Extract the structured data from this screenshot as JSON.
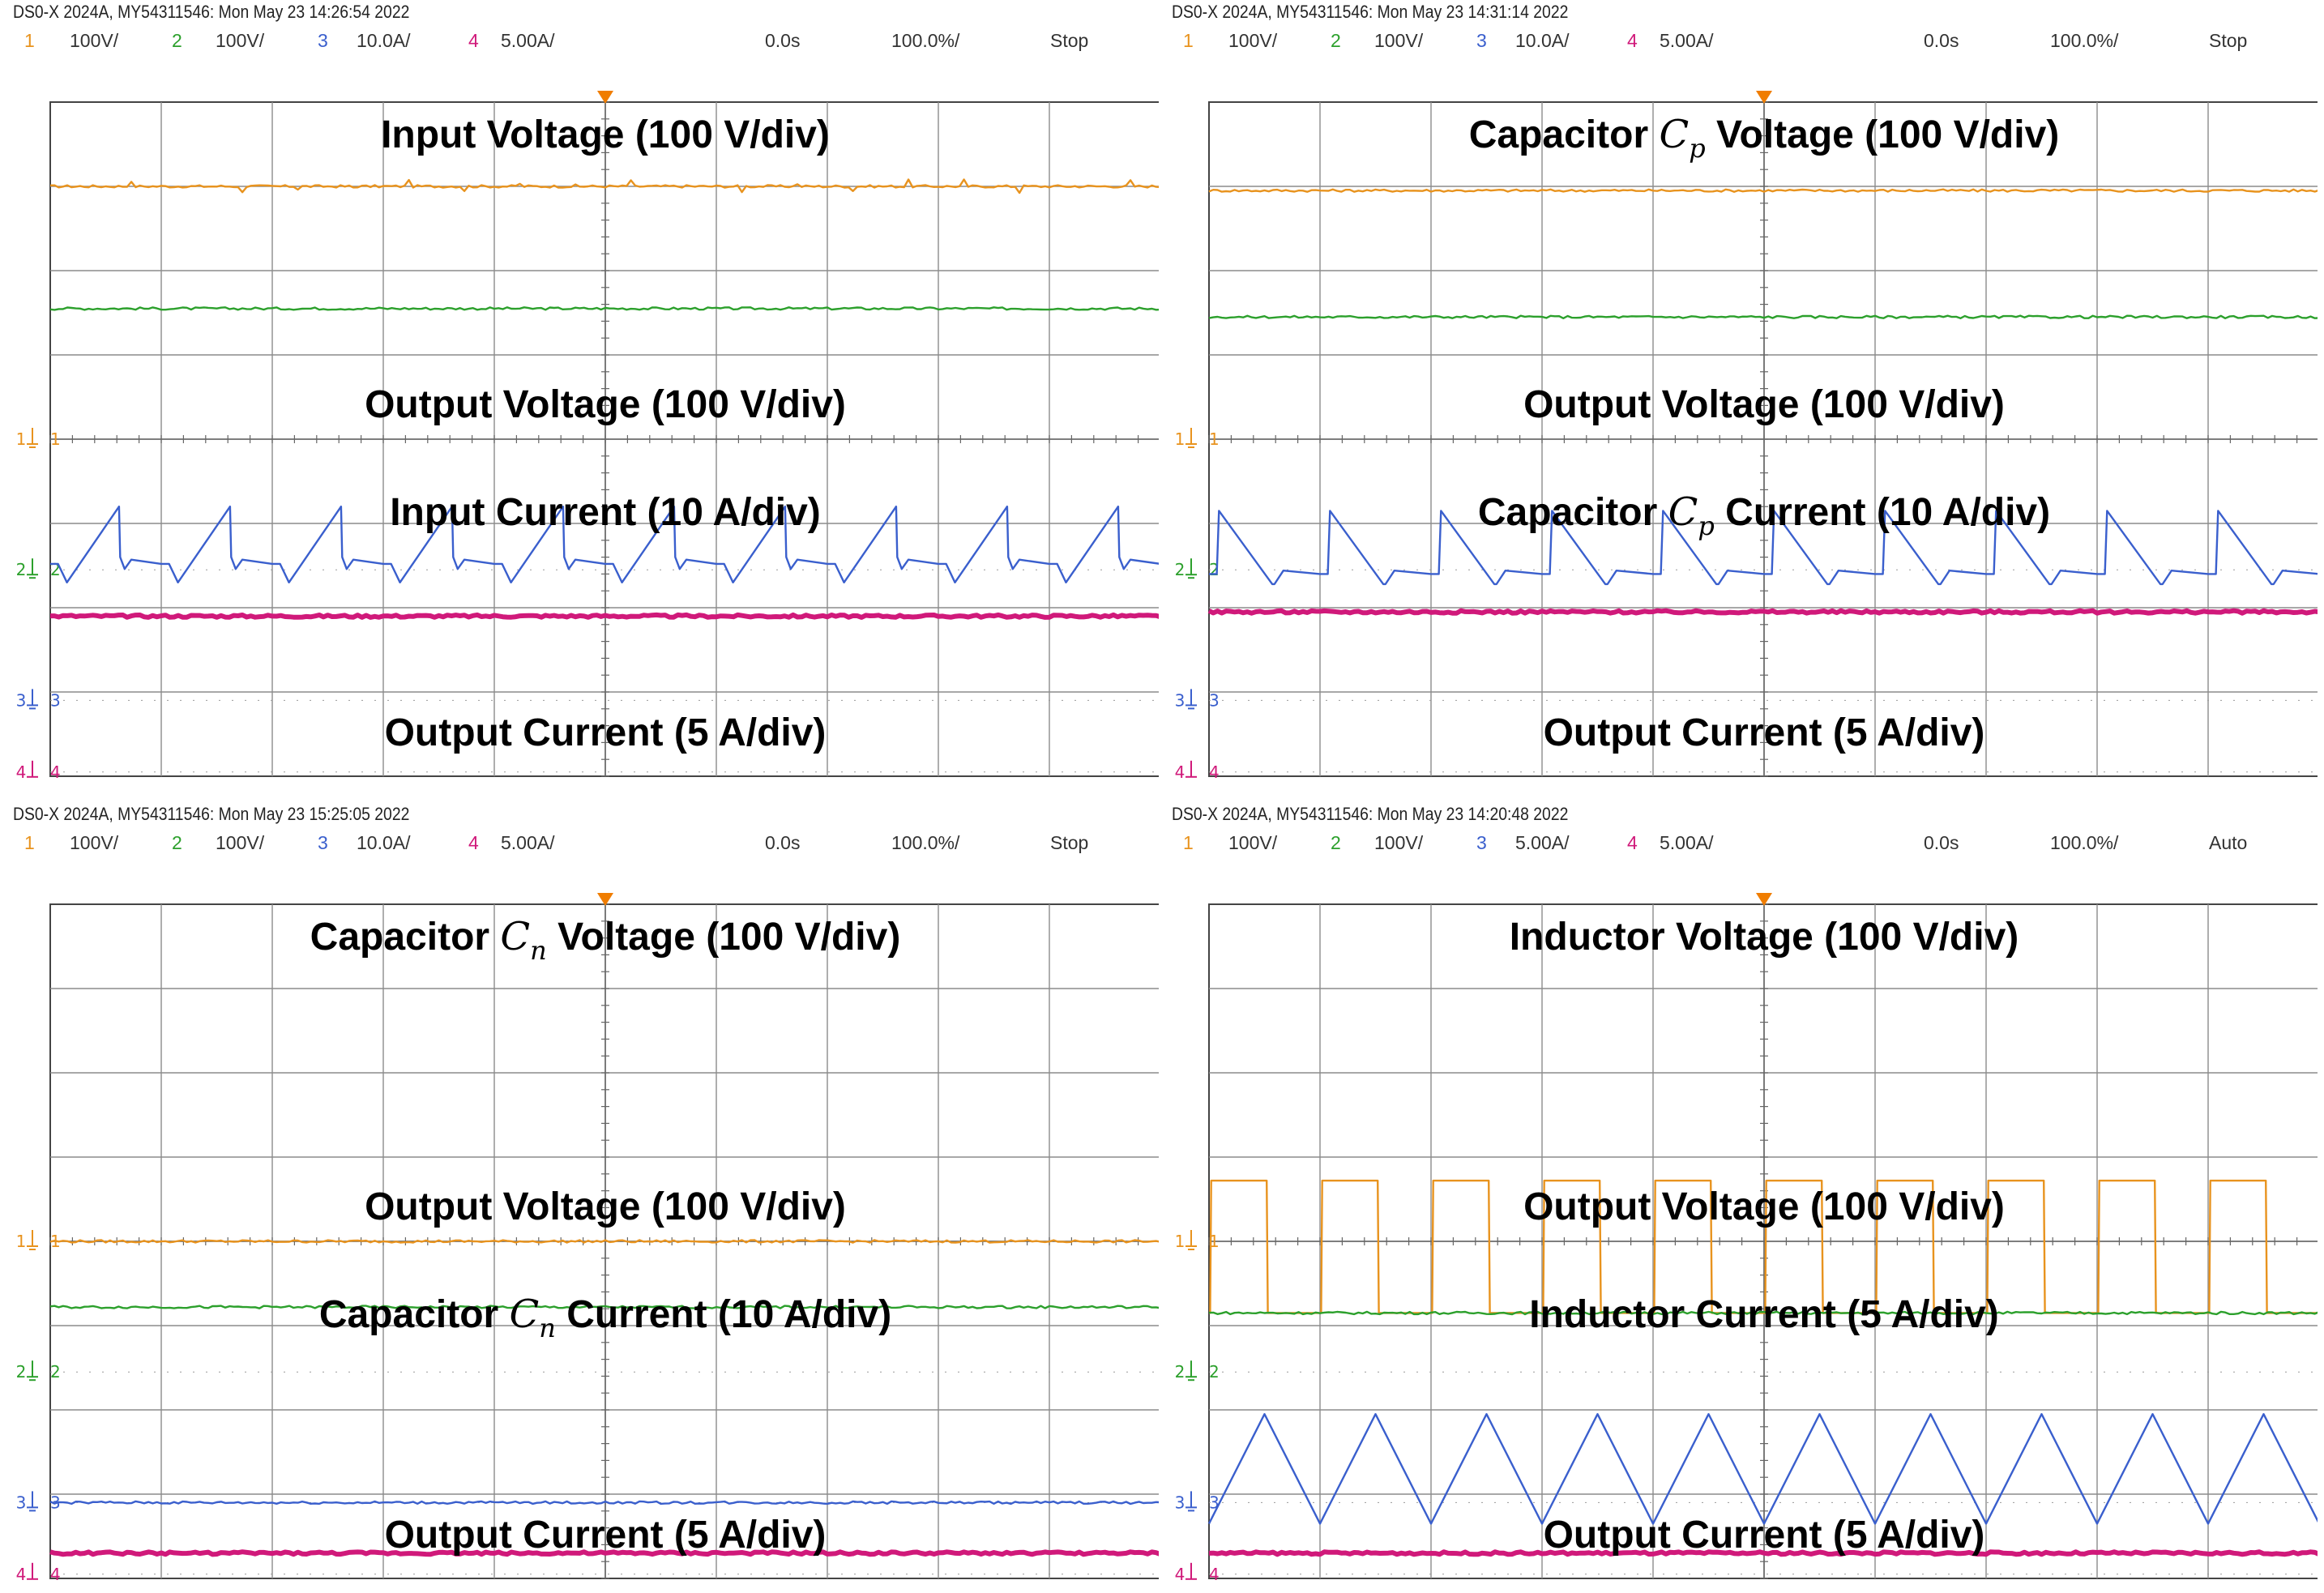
{
  "colors": {
    "ch1": "#e8931e",
    "ch2": "#2ca02c",
    "ch3": "#3a5fcd",
    "ch4": "#d0197a",
    "grid": "#8c8c8c",
    "header_index1": "#e8931e",
    "header_index2": "#2ca02c",
    "header_index3": "#3a5fcd",
    "header_index4": "#d0197a",
    "trigger": "#f07d00"
  },
  "panels": [
    {
      "header_line": "DS0-X 2024A, MY54311546: Mon May 23 14:26:54 2022",
      "channel_settings": [
        {
          "index": "1",
          "scale": "100V/"
        },
        {
          "index": "2",
          "scale": "100V/"
        },
        {
          "index": "3",
          "scale": "10.0A/"
        },
        {
          "index": "4",
          "scale": "5.00A/"
        }
      ],
      "time_offset": "0.0s",
      "time_scale": "100.0%/",
      "run_state": "Stop",
      "labels": {
        "l1": {
          "pre": "Input Voltage (100 V/div)",
          "math": "",
          "sub": "",
          "post": ""
        },
        "l2": {
          "pre": "Output Voltage (100 V/div)",
          "math": "",
          "sub": "",
          "post": ""
        },
        "l3": {
          "pre": "Input Current (10 A/div)",
          "math": "",
          "sub": "",
          "post": ""
        },
        "l4": {
          "pre": "Output Current (5 A/div)",
          "math": "",
          "sub": "",
          "post": ""
        }
      },
      "chart_data": {
        "type": "line",
        "x_unit": "div",
        "xlim": [
          0,
          10
        ],
        "ylim": [
          -4,
          4
        ],
        "series": [
          {
            "channel": "1",
            "name": "Input Voltage",
            "kind": "flat",
            "level_div": 3.0,
            "noise": "spikes"
          },
          {
            "channel": "2",
            "name": "Output Voltage",
            "kind": "flat",
            "level_div": 1.55
          },
          {
            "channel": "3",
            "name": "Input Current",
            "kind": "ramp_up",
            "periods": 10,
            "level_div": -1.48,
            "low_div": -1.7,
            "high_div": -0.8
          },
          {
            "channel": "4",
            "name": "Output Current",
            "kind": "flat",
            "level_div": -2.1,
            "thick": true
          }
        ],
        "channel_marker_level_div": {
          "1": 0.0,
          "2": -1.55,
          "3": -3.1,
          "4": -3.95
        }
      }
    },
    {
      "header_line": "DS0-X 2024A, MY54311546: Mon May 23 14:31:14 2022",
      "channel_settings": [
        {
          "index": "1",
          "scale": "100V/"
        },
        {
          "index": "2",
          "scale": "100V/"
        },
        {
          "index": "3",
          "scale": "10.0A/"
        },
        {
          "index": "4",
          "scale": "5.00A/"
        }
      ],
      "time_offset": "0.0s",
      "time_scale": "100.0%/",
      "run_state": "Stop",
      "labels": {
        "l1": {
          "pre": "Capacitor ",
          "math": "C",
          "sub": "p",
          "post": " Voltage (100 V/div)"
        },
        "l2": {
          "pre": "Output Voltage (100 V/div)",
          "math": "",
          "sub": "",
          "post": ""
        },
        "l3": {
          "pre": "Capacitor ",
          "math": "C",
          "sub": "p",
          "post": " Current (10 A/div)"
        },
        "l4": {
          "pre": "Output Current (5 A/div)",
          "math": "",
          "sub": "",
          "post": ""
        }
      },
      "chart_data": {
        "type": "line",
        "x_unit": "div",
        "xlim": [
          0,
          10
        ],
        "ylim": [
          -4,
          4
        ],
        "series": [
          {
            "channel": "1",
            "name": "Capacitor Cp Voltage",
            "kind": "flat",
            "level_div": 2.95
          },
          {
            "channel": "2",
            "name": "Output Voltage",
            "kind": "flat",
            "level_div": 1.45
          },
          {
            "channel": "3",
            "name": "Capacitor Cp Current",
            "kind": "ramp_down",
            "periods": 10,
            "level_div": -1.6,
            "low_div": -1.72,
            "high_div": -0.85
          },
          {
            "channel": "4",
            "name": "Output Current",
            "kind": "flat",
            "level_div": -2.05,
            "thick": true
          }
        ],
        "channel_marker_level_div": {
          "1": 0.0,
          "2": -1.55,
          "3": -3.1,
          "4": -3.95
        }
      }
    },
    {
      "header_line": "DS0-X 2024A, MY54311546: Mon May 23 15:25:05 2022",
      "channel_settings": [
        {
          "index": "1",
          "scale": "100V/"
        },
        {
          "index": "2",
          "scale": "100V/"
        },
        {
          "index": "3",
          "scale": "10.0A/"
        },
        {
          "index": "4",
          "scale": "5.00A/"
        }
      ],
      "time_offset": "0.0s",
      "time_scale": "100.0%/",
      "run_state": "Stop",
      "labels": {
        "l1": {
          "pre": "Capacitor ",
          "math": "C",
          "sub": "n",
          "post": " Voltage (100 V/div)"
        },
        "l2": {
          "pre": "Output Voltage (100 V/div)",
          "math": "",
          "sub": "",
          "post": ""
        },
        "l3": {
          "pre": "Capacitor ",
          "math": "C",
          "sub": "n",
          "post": " Current (10 A/div)"
        },
        "l4": {
          "pre": "Output Current (5 A/div)",
          "math": "",
          "sub": "",
          "post": ""
        }
      },
      "chart_data": {
        "type": "line",
        "x_unit": "div",
        "xlim": [
          0,
          10
        ],
        "ylim": [
          -4,
          4
        ],
        "series": [
          {
            "channel": "1",
            "name": "Capacitor Cn Voltage",
            "kind": "flat",
            "level_div": 0.0
          },
          {
            "channel": "2",
            "name": "Output Voltage",
            "kind": "flat",
            "level_div": -0.78
          },
          {
            "channel": "3",
            "name": "Capacitor Cn Current",
            "kind": "flat",
            "level_div": -3.1
          },
          {
            "channel": "4",
            "name": "Output Current",
            "kind": "flat",
            "level_div": -3.7,
            "thick": true
          }
        ],
        "channel_marker_level_div": {
          "1": 0.0,
          "2": -1.55,
          "3": -3.1,
          "4": -3.95
        }
      }
    },
    {
      "header_line": "DS0-X 2024A, MY54311546: Mon May 23 14:20:48 2022",
      "channel_settings": [
        {
          "index": "1",
          "scale": "100V/"
        },
        {
          "index": "2",
          "scale": "100V/"
        },
        {
          "index": "3",
          "scale": "5.00A/"
        },
        {
          "index": "4",
          "scale": "5.00A/"
        }
      ],
      "time_offset": "0.0s",
      "time_scale": "100.0%/",
      "run_state": "Auto",
      "labels": {
        "l1": {
          "pre": "Inductor Voltage (100 V/div)",
          "math": "",
          "sub": "",
          "post": ""
        },
        "l2": {
          "pre": "Output Voltage (100 V/div)",
          "math": "",
          "sub": "",
          "post": ""
        },
        "l3": {
          "pre": "Inductor Current (5 A/div)",
          "math": "",
          "sub": "",
          "post": ""
        },
        "l4": {
          "pre": "Output Current (5 A/div)",
          "math": "",
          "sub": "",
          "post": ""
        }
      },
      "chart_data": {
        "type": "line",
        "x_unit": "div",
        "xlim": [
          0,
          10
        ],
        "ylim": [
          -4,
          4
        ],
        "series": [
          {
            "channel": "1",
            "name": "Inductor Voltage",
            "kind": "square",
            "periods": 10,
            "high_div": 0.72,
            "low_div": -0.85,
            "duty": 0.5
          },
          {
            "channel": "2",
            "name": "Output Voltage",
            "kind": "flat",
            "level_div": -0.85
          },
          {
            "channel": "3",
            "name": "Inductor Current",
            "kind": "triangle",
            "periods": 10,
            "high_div": -2.05,
            "low_div": -3.35
          },
          {
            "channel": "4",
            "name": "Output Current",
            "kind": "flat",
            "level_div": -3.7,
            "thick": true
          }
        ],
        "channel_marker_level_div": {
          "1": 0.0,
          "2": -1.55,
          "3": -3.1,
          "4": -3.95
        }
      }
    }
  ]
}
